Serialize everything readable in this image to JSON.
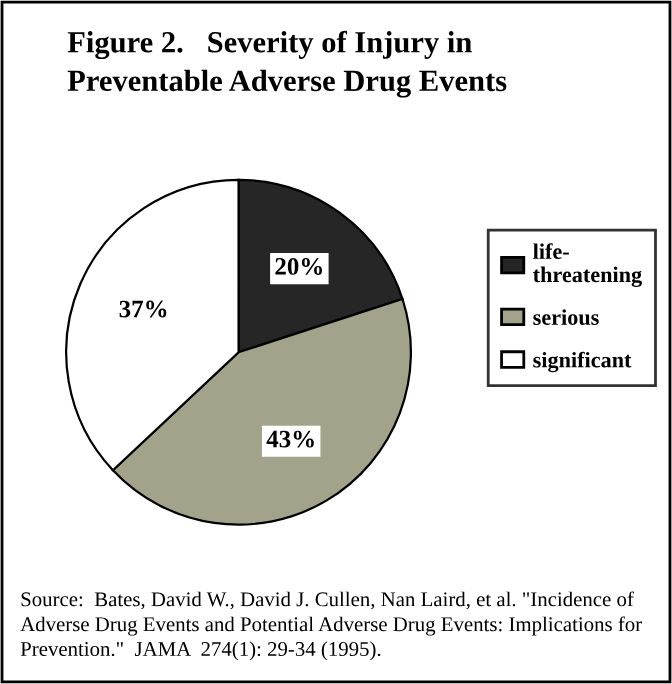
{
  "chart_data": {
    "type": "pie",
    "title": "Figure 2.   Severity of Injury in\nPreventable Adverse Drug Events",
    "categories": [
      "life-\nthreatening",
      "serious",
      "significant"
    ],
    "values": [
      20,
      43,
      37
    ],
    "colors": [
      "#262626",
      "#a3a38c",
      "#ffffff"
    ],
    "value_labels": [
      "20%",
      "43%",
      "37%"
    ],
    "legend": "right",
    "annotations": [
      "Source:  Bates, David W., David J. Cullen, Nan Laird, et al. \"Incidence of Adverse Drug Events and Potential Adverse Drug Events: Implications for Prevention.\"  JAMA  274(1): 29-34 (1995)."
    ]
  }
}
